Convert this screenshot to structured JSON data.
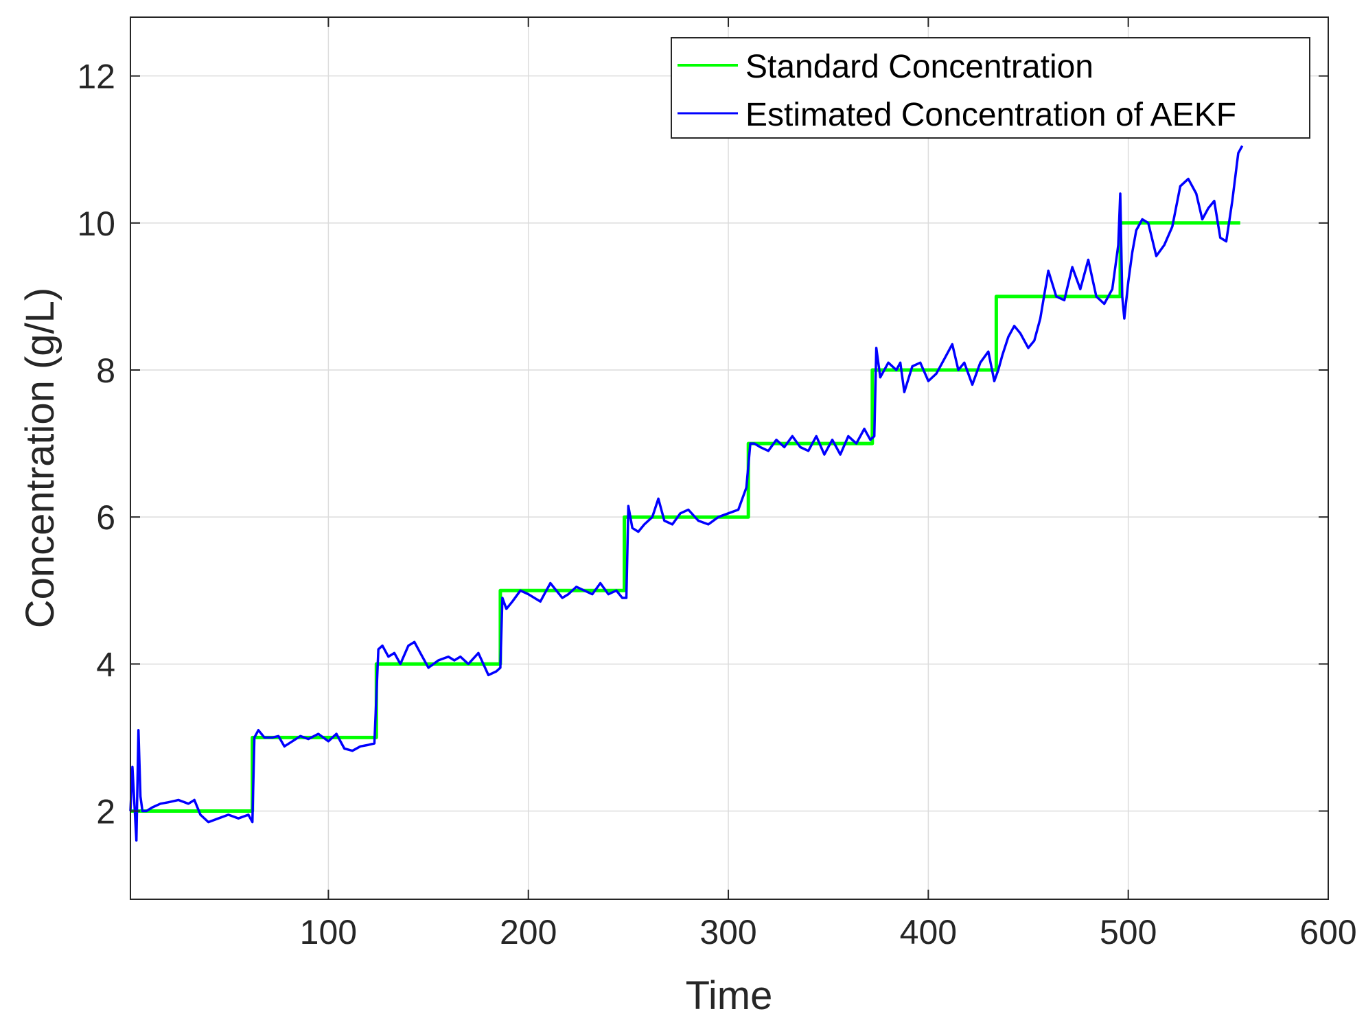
{
  "chart_data": {
    "type": "line",
    "xlabel": "Time",
    "ylabel": "Concentration (g/L)",
    "xlim": [
      1,
      600
    ],
    "ylim": [
      0.8,
      12.8
    ],
    "x_ticks": [
      100,
      200,
      300,
      400,
      500,
      600
    ],
    "y_ticks": [
      2,
      4,
      6,
      8,
      10,
      12
    ],
    "grid": true,
    "legend_position": "top-right",
    "series": [
      {
        "name": "Standard Concentration",
        "color": "#00ff00",
        "x": [
          1,
          62,
          62,
          124,
          124,
          186,
          186,
          248,
          248,
          310,
          310,
          372,
          372,
          434,
          434,
          496,
          496,
          556
        ],
        "y": [
          2,
          2,
          3,
          3,
          4,
          4,
          5,
          5,
          6,
          6,
          7,
          7,
          8,
          8,
          9,
          9,
          10,
          10
        ]
      },
      {
        "name": "Estimated Concentration of AEKF",
        "color": "#0000ff",
        "x": [
          1,
          2,
          3,
          4,
          5,
          6,
          7,
          9,
          12,
          16,
          20,
          25,
          30,
          33,
          36,
          40,
          45,
          50,
          55,
          60,
          62,
          63,
          65,
          68,
          72,
          75,
          78,
          82,
          86,
          90,
          95,
          100,
          104,
          108,
          112,
          116,
          120,
          123,
          125,
          127,
          130,
          133,
          136,
          140,
          143,
          146,
          150,
          155,
          160,
          163,
          166,
          170,
          175,
          180,
          184,
          186,
          187,
          189,
          192,
          196,
          200,
          203,
          206,
          208,
          211,
          214,
          217,
          220,
          224,
          228,
          232,
          236,
          240,
          244,
          247,
          249,
          250,
          252,
          255,
          258,
          262,
          265,
          268,
          272,
          276,
          280,
          285,
          290,
          295,
          300,
          305,
          309,
          311,
          313,
          316,
          320,
          324,
          328,
          332,
          336,
          340,
          344,
          348,
          352,
          356,
          360,
          364,
          368,
          371,
          373,
          374,
          376,
          380,
          384,
          386,
          388,
          392,
          396,
          400,
          404,
          408,
          412,
          415,
          418,
          422,
          426,
          430,
          433,
          435,
          437,
          440,
          443,
          446,
          450,
          453,
          456,
          460,
          464,
          468,
          472,
          476,
          480,
          484,
          488,
          492,
          495,
          496,
          497,
          498,
          500,
          502,
          504,
          507,
          510,
          514,
          518,
          522,
          526,
          530,
          534,
          537,
          540,
          543,
          546,
          549,
          552,
          555,
          557
        ],
        "y": [
          2.0,
          2.6,
          2.1,
          1.6,
          3.1,
          2.2,
          2.0,
          2.0,
          2.05,
          2.1,
          2.12,
          2.15,
          2.1,
          2.15,
          1.95,
          1.85,
          1.9,
          1.95,
          1.9,
          1.95,
          1.85,
          3.0,
          3.1,
          3.0,
          3.0,
          3.02,
          2.88,
          2.95,
          3.02,
          2.98,
          3.05,
          2.95,
          3.05,
          2.85,
          2.82,
          2.88,
          2.9,
          2.92,
          4.2,
          4.25,
          4.1,
          4.15,
          4.0,
          4.25,
          4.3,
          4.15,
          3.95,
          4.05,
          4.1,
          4.05,
          4.1,
          4.0,
          4.15,
          3.85,
          3.9,
          3.95,
          4.9,
          4.75,
          4.85,
          5.0,
          4.95,
          4.9,
          4.85,
          4.95,
          5.1,
          5.0,
          4.9,
          4.95,
          5.05,
          5.0,
          4.95,
          5.1,
          4.95,
          5.0,
          4.9,
          4.9,
          6.15,
          5.85,
          5.8,
          5.9,
          6.0,
          6.25,
          5.95,
          5.9,
          6.05,
          6.1,
          5.95,
          5.9,
          6.0,
          6.05,
          6.1,
          6.4,
          7.0,
          7.0,
          6.95,
          6.9,
          7.05,
          6.95,
          7.1,
          6.95,
          6.9,
          7.1,
          6.85,
          7.05,
          6.85,
          7.1,
          7.0,
          7.2,
          7.05,
          7.1,
          8.3,
          7.9,
          8.1,
          8.0,
          8.1,
          7.7,
          8.05,
          8.1,
          7.85,
          7.95,
          8.15,
          8.35,
          8.0,
          8.1,
          7.8,
          8.1,
          8.25,
          7.85,
          8.0,
          8.2,
          8.45,
          8.6,
          8.5,
          8.3,
          8.4,
          8.7,
          9.35,
          9.0,
          8.95,
          9.4,
          9.1,
          9.5,
          9.0,
          8.9,
          9.1,
          9.7,
          10.4,
          9.0,
          8.7,
          9.2,
          9.6,
          9.9,
          10.05,
          10.0,
          9.55,
          9.7,
          9.95,
          10.5,
          10.6,
          10.4,
          10.05,
          10.2,
          10.3,
          9.8,
          9.75,
          10.3,
          10.95,
          11.05
        ]
      }
    ]
  }
}
